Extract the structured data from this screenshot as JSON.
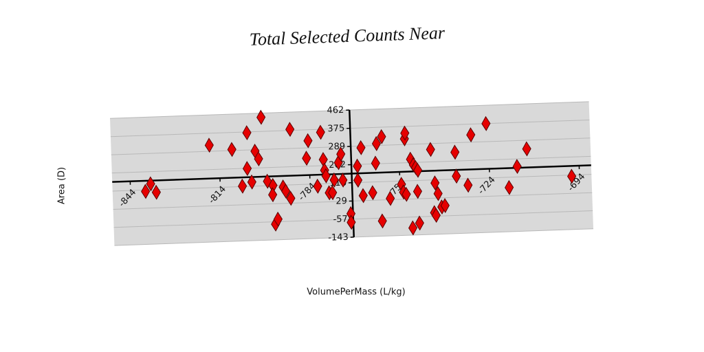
{
  "chart_data": {
    "type": "scatter",
    "title": "Total Selected Counts Near",
    "x_label": "VolumePerMass (L/kg)",
    "y_label": "Area (D)",
    "x": [
      -839.0,
      -837.2,
      -835.4,
      -817.2,
      -809.7,
      -806.6,
      -804.8,
      -804.5,
      -803.4,
      -802.0,
      -800.9,
      -799.6,
      -798.2,
      -796.4,
      -796.6,
      -796.0,
      -795.1,
      -793.0,
      -792.2,
      -790.6,
      -790.1,
      -784.9,
      -784.2,
      -781.5,
      -779.9,
      -779.3,
      -779.0,
      -778.6,
      -777.7,
      -776.6,
      -775.9,
      -774.3,
      -773.4,
      -773.0,
      -770.7,
      -770.7,
      -768.0,
      -768.0,
      -766.6,
      -766.4,
      -763.2,
      -761.9,
      -761.4,
      -760.3,
      -759.6,
      -757.4,
      -753.5,
      -752.9,
      -752.0,
      -752.0,
      -751.8,
      -750.2,
      -750.2,
      -749.3,
      -748.6,
      -747.9,
      -748.2,
      -747.9,
      -743.4,
      -742.8,
      -742.3,
      -742.3,
      -741.4,
      -740.3,
      -739.2,
      -735.3,
      -735.1,
      -731.3,
      -729.8,
      -724.6,
      -717.6,
      -714.7,
      -711.3,
      -696.6
    ],
    "values": [
      109,
      144,
      103,
      318,
      294,
      118,
      201,
      371,
      136,
      282,
      245,
      442,
      137,
      116,
      72,
      -68,
      -45,
      107,
      87,
      52,
      380,
      240,
      323,
      105,
      361,
      231,
      180,
      153,
      72,
      72,
      132,
      214,
      254,
      130,
      -31,
      -72,
      194,
      127,
      281,
      53,
      65,
      205,
      298,
      -71,
      330,
      35,
      100,
      63,
      52,
      316,
      343,
      218,
      -109,
      191,
      178,
      164,
      64,
      -87,
      261,
      -40,
      101,
      -53,
      50,
      -14,
      -8,
      244,
      130,
      85,
      324,
      375,
      67,
      166,
      248,
      110
    ],
    "color": "#e60000",
    "xlim": [
      -850,
      -690
    ],
    "xticks": [
      -844,
      -814,
      -784,
      -754,
      -724,
      -694
    ],
    "ylim": [
      -143,
      462
    ],
    "yticks": [
      462,
      375,
      289,
      202,
      116,
      29,
      -57,
      -143
    ],
    "grid": true
  }
}
